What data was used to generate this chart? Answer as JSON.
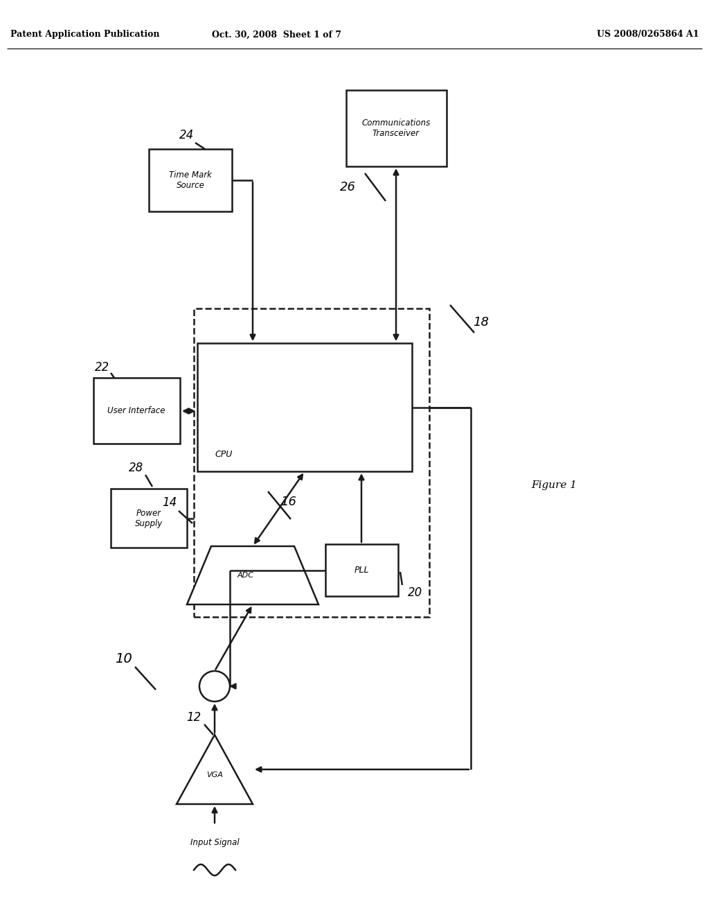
{
  "title_left": "Patent Application Publication",
  "title_mid": "Oct. 30, 2008  Sheet 1 of 7",
  "title_right": "US 2008/0265864 A1",
  "figure_label": "Figure 1",
  "bg_color": "#ffffff",
  "line_color": "#1a1a1a",
  "label_10": "10",
  "label_12": "12",
  "label_14": "14",
  "label_16": "16",
  "label_18": "18",
  "label_20": "20",
  "label_22": "22",
  "label_24": "24",
  "label_26": "26",
  "label_28": "28",
  "text_vga": "VGA",
  "text_adc": "ADC",
  "text_cpu": "CPU",
  "text_pll": "PLL",
  "text_user_interface": "User Interface",
  "text_time_mark": "Time Mark\nSource",
  "text_comm_transceiver": "Communications\nTransceiver",
  "text_power_supply": "Power\nSupply",
  "text_input_signal": "Input Signal"
}
